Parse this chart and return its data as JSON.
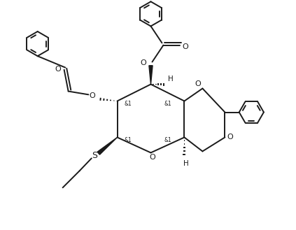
{
  "background_color": "#ffffff",
  "line_color": "#1a1a1a",
  "line_width": 1.4,
  "figsize": [
    4.23,
    3.29
  ],
  "dpi": 100,
  "xlim": [
    0,
    10
  ],
  "ylim": [
    0,
    8.2
  ]
}
